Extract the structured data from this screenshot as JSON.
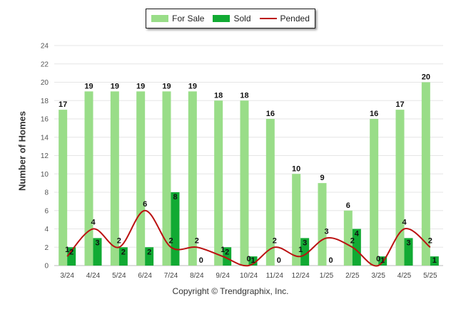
{
  "chart_data": {
    "type": "bar",
    "categories": [
      "3/24",
      "4/24",
      "5/24",
      "6/24",
      "7/24",
      "8/24",
      "9/24",
      "10/24",
      "11/24",
      "12/24",
      "1/25",
      "2/25",
      "3/25",
      "4/25",
      "5/25"
    ],
    "series": [
      {
        "name": "For Sale",
        "type": "bar",
        "color": "#99dd88",
        "values": [
          17,
          19,
          19,
          19,
          19,
          19,
          18,
          18,
          16,
          10,
          9,
          6,
          16,
          17,
          20
        ]
      },
      {
        "name": "Sold",
        "type": "bar",
        "color": "#11aa33",
        "values": [
          2,
          3,
          2,
          2,
          8,
          0,
          2,
          1,
          0,
          3,
          0,
          4,
          1,
          3,
          1
        ]
      },
      {
        "name": "Pended",
        "type": "line",
        "color": "#bb1111",
        "values": [
          1,
          4,
          2,
          6,
          2,
          2,
          1,
          0,
          2,
          1,
          3,
          2,
          0,
          4,
          2
        ]
      }
    ],
    "ylabel": "Number of Homes",
    "yticks": [
      0,
      2,
      4,
      6,
      8,
      10,
      12,
      14,
      16,
      18,
      20,
      22,
      24
    ],
    "ylim": [
      0,
      24
    ],
    "grid": true,
    "legend": "top-center"
  },
  "footer": "Copyright © Trendgraphix, Inc."
}
